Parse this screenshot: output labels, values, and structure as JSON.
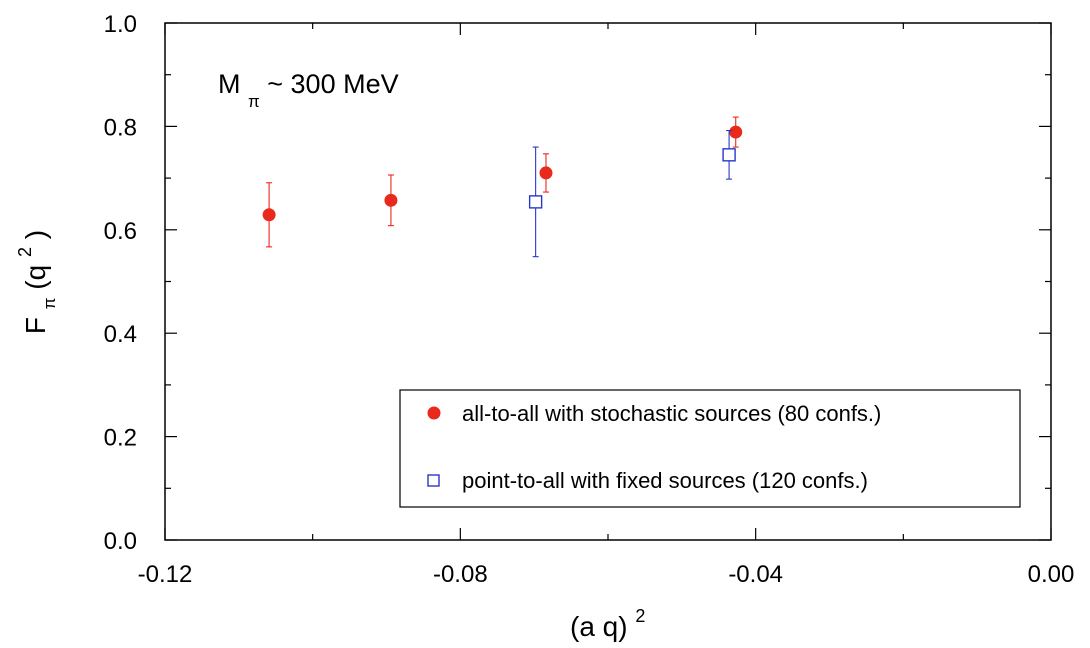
{
  "chart_data": {
    "type": "scatter",
    "xlabel": "(a q)",
    "xlabel_sup": "2",
    "ylabel_main": "F",
    "ylabel_sub": "π",
    "ylabel_arg": "(q",
    "ylabel_sup": "2",
    "ylabel_close": ")",
    "xlim": [
      -0.12,
      0.0
    ],
    "ylim": [
      0.0,
      1.0
    ],
    "x_ticks": [
      -0.12,
      -0.08,
      -0.04,
      0.0
    ],
    "x_tick_labels": [
      "-0.12",
      "-0.08",
      "-0.04",
      "0.00"
    ],
    "y_ticks": [
      0.0,
      0.2,
      0.4,
      0.6,
      0.8,
      1.0
    ],
    "y_tick_labels": [
      "0.0",
      "0.2",
      "0.4",
      "0.6",
      "0.8",
      "1.0"
    ],
    "grid": false,
    "legend_position": "bottom-right",
    "annotation": {
      "main": "M",
      "sub": "π",
      "rest": "~ 300 MeV"
    },
    "series": [
      {
        "name": "all-to-all with stochastic sources (80 confs.)",
        "marker": "filled-circle",
        "color": "#e8291c",
        "points": [
          {
            "x": -0.1059,
            "y": 0.629,
            "err": 0.062
          },
          {
            "x": -0.0894,
            "y": 0.657,
            "err": 0.049
          },
          {
            "x": -0.0684,
            "y": 0.71,
            "err": 0.037
          },
          {
            "x": -0.0427,
            "y": 0.789,
            "err": 0.029
          }
        ]
      },
      {
        "name": "point-to-all with fixed sources (120 confs.)",
        "marker": "open-square",
        "color": "#2a36c8",
        "points": [
          {
            "x": -0.0698,
            "y": 0.654,
            "err": 0.106
          },
          {
            "x": -0.0436,
            "y": 0.745,
            "err": 0.047
          }
        ]
      }
    ]
  }
}
